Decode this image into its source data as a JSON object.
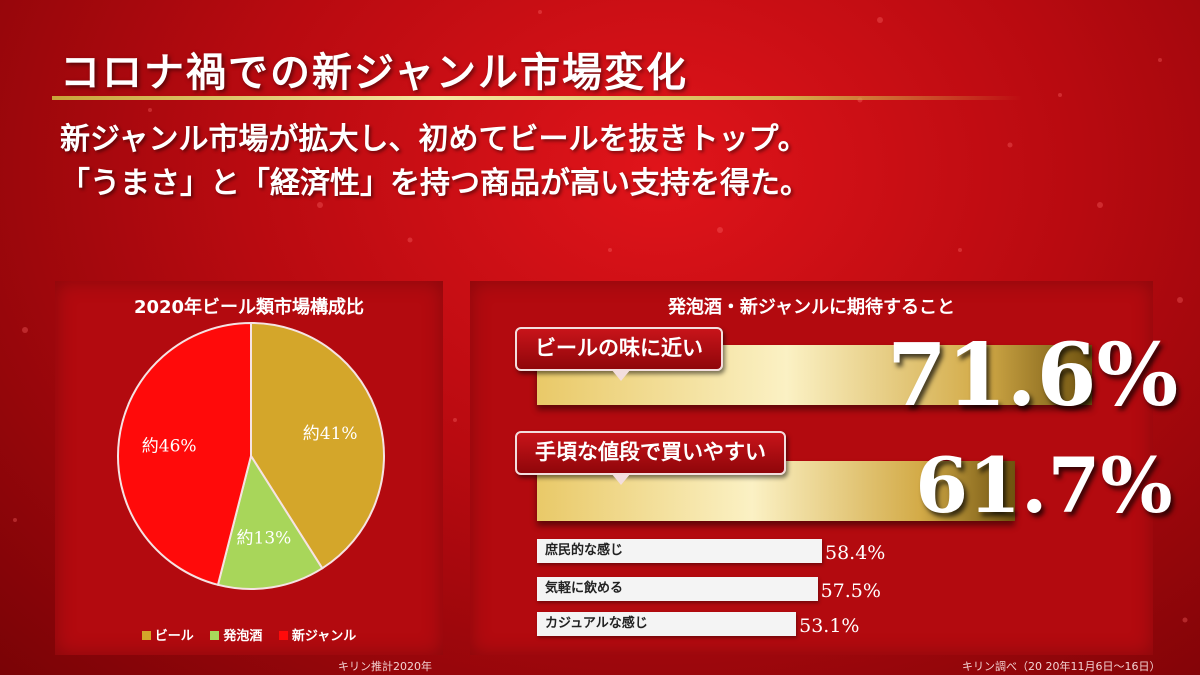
{
  "header": {
    "title": "コロナ禍での新ジャンル市場変化",
    "subtitle_lines": [
      "新ジャンル市場が拡大し、初めてビールを抜きトップ。",
      "「うまさ」と「経済性」を持つ商品が高い支持を得た。"
    ]
  },
  "chart_data": [
    {
      "type": "pie",
      "title": "2020年ビール類市場構成比",
      "labels": [
        "ビール",
        "発泡酒",
        "新ジャンル"
      ],
      "values": [
        41,
        13,
        46
      ],
      "value_labels": [
        "約41%",
        "約13%",
        "約46%"
      ],
      "colors": [
        "#d4a62a",
        "#a8d65a",
        "#ff0a0a"
      ],
      "legend": "bottom",
      "source": "キリン推計2020年"
    },
    {
      "type": "bar",
      "orientation": "horizontal",
      "title": "発泡酒・新ジャンルに期待すること",
      "categories": [
        "ビールの味に近い",
        "手頃な値段で買いやすい",
        "庶民的な感じ",
        "気軽に飲める",
        "カジュアルな感じ"
      ],
      "values": [
        71.6,
        61.7,
        58.4,
        57.5,
        53.1
      ],
      "value_labels": [
        "71.6%",
        "61.7%",
        "58.4%",
        "57.5%",
        "53.1%"
      ],
      "unit": "%",
      "source": "キリン調べ（20 20年11月6日～16日）"
    }
  ]
}
